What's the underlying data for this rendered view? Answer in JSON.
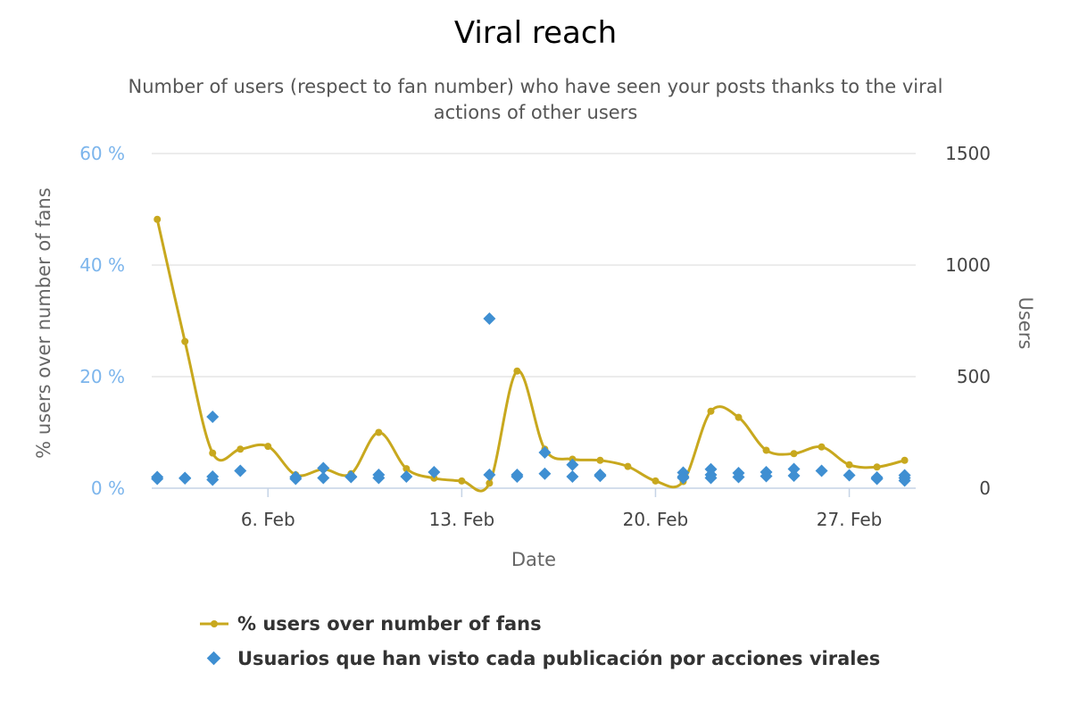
{
  "chart_data": {
    "type": "line",
    "title": "Viral reach",
    "subtitle_lines": [
      "Number of users (respect to fan number) who have seen your posts thanks to the viral",
      "actions of other users"
    ],
    "xlabel": "Date",
    "ylabel_left": "% users over number of fans",
    "ylabel_right": "Users",
    "x_ticks": [
      {
        "day": 6,
        "label": "6. Feb"
      },
      {
        "day": 13,
        "label": "13. Feb"
      },
      {
        "day": 20,
        "label": "20. Feb"
      },
      {
        "day": 27,
        "label": "27. Feb"
      }
    ],
    "x_range": [
      1.8,
      29.4
    ],
    "y_left": {
      "min": 0,
      "max": 60,
      "ticks": [
        0,
        20,
        40,
        60
      ],
      "tick_labels": [
        "0 %",
        "20 %",
        "40 %",
        "60 %"
      ]
    },
    "y_right": {
      "min": 0,
      "max": 1500,
      "ticks": [
        0,
        500,
        1000,
        1500
      ],
      "tick_labels": [
        "0",
        "500",
        "1000",
        "1500"
      ]
    },
    "grid": true,
    "legend_position": "bottom",
    "series": [
      {
        "name": "% users over number of fans",
        "axis": "left",
        "style": "spline",
        "color": "#c8a81e",
        "points": [
          [
            2,
            48.2
          ],
          [
            3,
            26.3
          ],
          [
            4,
            6.3
          ],
          [
            5,
            7.0
          ],
          [
            6,
            7.5
          ],
          [
            7,
            2.4
          ],
          [
            8,
            3.4
          ],
          [
            9,
            2.6
          ],
          [
            10,
            10.0
          ],
          [
            11,
            3.5
          ],
          [
            12,
            1.8
          ],
          [
            13,
            1.3
          ],
          [
            14,
            0.9
          ],
          [
            15,
            21.0
          ],
          [
            16,
            7.0
          ],
          [
            17,
            5.2
          ],
          [
            18,
            5.0
          ],
          [
            19,
            3.9
          ],
          [
            20,
            1.3
          ],
          [
            21,
            1.2
          ],
          [
            22,
            13.8
          ],
          [
            23,
            12.7
          ],
          [
            24,
            6.8
          ],
          [
            25,
            6.2
          ],
          [
            26,
            7.4
          ],
          [
            27,
            4.2
          ],
          [
            28,
            3.8
          ],
          [
            29,
            5.0
          ]
        ]
      },
      {
        "name": "Usuarios que han visto cada publicación por acciones virales",
        "axis": "right",
        "style": "scatter",
        "color": "#3f8fd2",
        "points": [
          [
            2,
            50
          ],
          [
            2,
            42
          ],
          [
            3,
            46
          ],
          [
            3,
            44
          ],
          [
            4,
            320
          ],
          [
            4,
            52
          ],
          [
            4,
            38
          ],
          [
            5,
            78
          ],
          [
            7,
            50
          ],
          [
            7,
            42
          ],
          [
            8,
            90
          ],
          [
            8,
            46
          ],
          [
            9,
            52
          ],
          [
            9,
            50
          ],
          [
            10,
            60
          ],
          [
            10,
            46
          ],
          [
            11,
            52
          ],
          [
            12,
            72
          ],
          [
            14,
            760
          ],
          [
            14,
            60
          ],
          [
            15,
            60
          ],
          [
            15,
            52
          ],
          [
            16,
            65
          ],
          [
            16,
            160
          ],
          [
            17,
            105
          ],
          [
            17,
            52
          ],
          [
            18,
            60
          ],
          [
            18,
            55
          ],
          [
            21,
            70
          ],
          [
            21,
            52
          ],
          [
            21,
            46
          ],
          [
            22,
            85
          ],
          [
            22,
            60
          ],
          [
            22,
            46
          ],
          [
            23,
            68
          ],
          [
            23,
            50
          ],
          [
            24,
            72
          ],
          [
            24,
            54
          ],
          [
            25,
            86
          ],
          [
            25,
            56
          ],
          [
            26,
            78
          ],
          [
            27,
            58
          ],
          [
            28,
            48
          ],
          [
            28,
            42
          ],
          [
            29,
            58
          ],
          [
            29,
            46
          ],
          [
            29,
            34
          ]
        ]
      }
    ]
  }
}
